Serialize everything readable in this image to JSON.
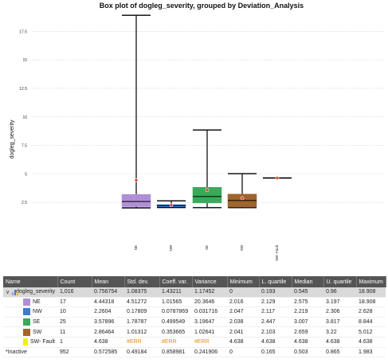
{
  "chart_data": {
    "type": "box",
    "title": "Box plot of dogleg_severity, grouped by Deviation_Analysis",
    "ylabel": "dogleg_severity",
    "xlabel": "",
    "ylim": [
      0,
      19.2
    ],
    "yticks": [
      2.5,
      5,
      7.5,
      10,
      12.5,
      15,
      17.5
    ],
    "ytick_labels": [
      "2.5",
      "5",
      "7.5",
      "10",
      "12.5",
      "15",
      "17.5"
    ],
    "grid": true,
    "categories": [
      "NE",
      "NW",
      "SE",
      "SW",
      "SW- Fault"
    ],
    "colors": [
      "#b18fd6",
      "#3f7ad0",
      "#3aaa5a",
      "#a0642d",
      "#f2f200"
    ],
    "boxes": [
      {
        "category": "NE",
        "min": 2.016,
        "q1": 2.129,
        "median": 2.575,
        "q3": 3.197,
        "max": 18.908,
        "mean": 4.44318
      },
      {
        "category": "NW",
        "min": 2.047,
        "q1": 2.117,
        "median": 2.219,
        "q3": 2.306,
        "max": 2.628,
        "mean": 2.2604
      },
      {
        "category": "SE",
        "min": 2.038,
        "q1": 2.447,
        "median": 3.007,
        "q3": 3.817,
        "max": 8.844,
        "mean": 3.57896
      },
      {
        "category": "SW",
        "min": 2.041,
        "q1": 2.103,
        "median": 2.659,
        "q3": 3.22,
        "max": 5.012,
        "mean": 2.86464
      },
      {
        "category": "SW- Fault",
        "min": 4.638,
        "q1": 4.638,
        "median": 4.638,
        "q3": 4.638,
        "max": 4.638,
        "mean": 4.638
      }
    ]
  },
  "table": {
    "columns": [
      "Name",
      "Count",
      "Mean",
      "Std. dev.",
      "Coeff. var.",
      "Variance",
      "Minimum",
      "L. quartile",
      "Median",
      "U. quartile",
      "Maximum"
    ],
    "rows": [
      {
        "name": "dogleg_severity",
        "kind": "group",
        "cells": [
          "1,016",
          "0.756754",
          "1.08375",
          "1.43211",
          "1.17452",
          "0",
          "0.193",
          "0.545",
          "0.96",
          "18.908"
        ]
      },
      {
        "name": "NE",
        "kind": "cat",
        "color": "#b18fd6",
        "cells": [
          "17",
          "4.44318",
          "4.51272",
          "1.01565",
          "20.3646",
          "2.016",
          "2.129",
          "2.575",
          "3.197",
          "18.908"
        ]
      },
      {
        "name": "NW",
        "kind": "cat",
        "color": "#3f7ad0",
        "cells": [
          "10",
          "2.2604",
          "0.17809",
          "0.0787869",
          "0.031716",
          "2.047",
          "2.117",
          "2.219",
          "2.306",
          "2.628"
        ]
      },
      {
        "name": "SE",
        "kind": "cat",
        "color": "#3aaa5a",
        "cells": [
          "25",
          "3.57896",
          "1.78787",
          "0.499549",
          "3.19647",
          "2.038",
          "2.447",
          "3.007",
          "3.817",
          "8.844"
        ]
      },
      {
        "name": "SW",
        "kind": "cat",
        "color": "#a0642d",
        "cells": [
          "11",
          "2.86464",
          "1.01312",
          "0.353665",
          "1.02641",
          "2.041",
          "2.103",
          "2.659",
          "3.22",
          "5.012"
        ]
      },
      {
        "name": "SW- Fault",
        "kind": "cat",
        "color": "#f2f200",
        "cells": [
          "1",
          "4.638",
          "#ERR",
          "#ERR",
          "#ERR",
          "4.638",
          "4.638",
          "4.638",
          "4.638",
          "4.638"
        ]
      },
      {
        "name": "*Inactive",
        "kind": "plain",
        "cells": [
          "952",
          "0.572585",
          "0.49184",
          "0.858981",
          "0.241906",
          "0",
          "0.165",
          "0.503",
          "0.865",
          "1.983"
        ]
      }
    ]
  }
}
